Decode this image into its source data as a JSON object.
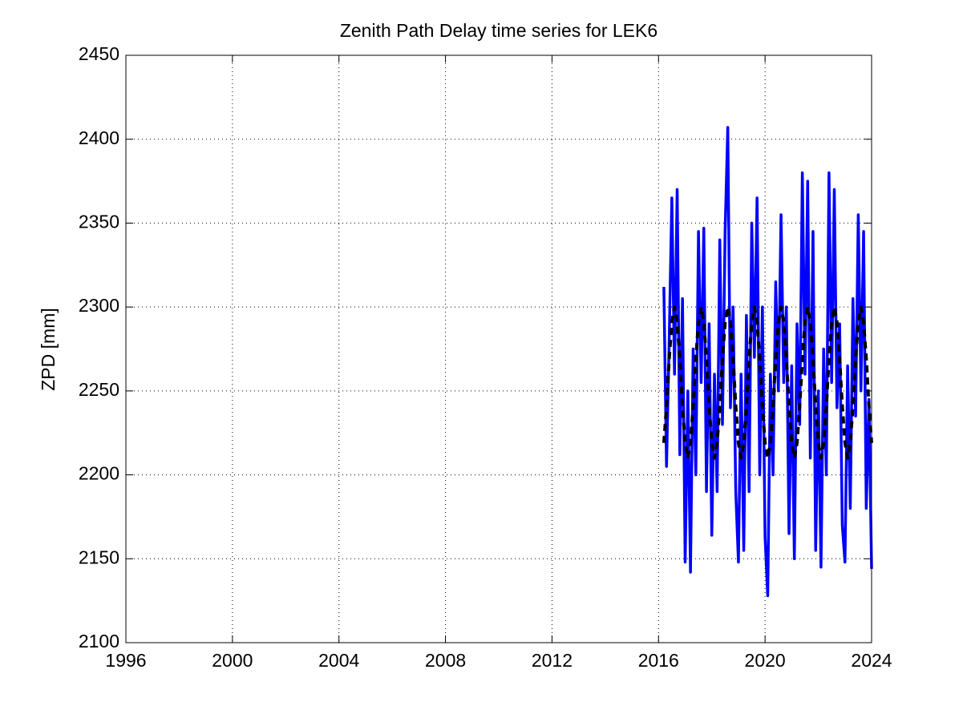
{
  "chart_data": {
    "type": "line",
    "title": "Zenith Path Delay time series for LEK6",
    "y_label": "ZPD [mm]",
    "x": [
      2016.2,
      2016.3,
      2016.4,
      2016.5,
      2016.6,
      2016.7,
      2016.8,
      2016.9,
      2017.0,
      2017.1,
      2017.2,
      2017.3,
      2017.4,
      2017.5,
      2017.6,
      2017.7,
      2017.8,
      2017.9,
      2018.0,
      2018.1,
      2018.2,
      2018.3,
      2018.4,
      2018.5,
      2018.6,
      2018.7,
      2018.8,
      2018.9,
      2019.0,
      2019.1,
      2019.2,
      2019.3,
      2019.4,
      2019.5,
      2019.6,
      2019.7,
      2019.8,
      2019.9,
      2020.0,
      2020.1,
      2020.2,
      2020.3,
      2020.4,
      2020.5,
      2020.6,
      2020.7,
      2020.8,
      2020.9,
      2021.0,
      2021.1,
      2021.2,
      2021.3,
      2021.4,
      2021.5,
      2021.6,
      2021.7,
      2021.8,
      2021.9,
      2022.0,
      2022.1,
      2022.2,
      2022.3,
      2022.4,
      2022.5,
      2022.6,
      2022.7,
      2022.8,
      2022.9,
      2023.0,
      2023.1,
      2023.2,
      2023.3,
      2023.4,
      2023.5,
      2023.6,
      2023.7,
      2023.8,
      2023.9,
      2024.0
    ],
    "series": [
      {
        "color": "#0000ff",
        "line_style": "solid",
        "values": [
          2312,
          2205,
          2280,
          2365,
          2260,
          2370,
          2212,
          2305,
          2148,
          2250,
          2142,
          2275,
          2200,
          2345,
          2255,
          2347,
          2190,
          2290,
          2164,
          2260,
          2190,
          2340,
          2230,
          2345,
          2407,
          2240,
          2300,
          2190,
          2148,
          2260,
          2155,
          2295,
          2190,
          2350,
          2270,
          2365,
          2200,
          2300,
          2163,
          2128,
          2260,
          2200,
          2315,
          2250,
          2355,
          2255,
          2300,
          2165,
          2265,
          2150,
          2290,
          2230,
          2380,
          2260,
          2375,
          2210,
          2345,
          2155,
          2250,
          2145,
          2275,
          2200,
          2380,
          2255,
          2370,
          2240,
          2290,
          2170,
          2148,
          2265,
          2180,
          2305,
          2235,
          2355,
          2250,
          2345,
          2180,
          2245,
          2144
        ]
      },
      {
        "color": "#000000",
        "line_style": "dashed",
        "values": [
          2219,
          2241,
          2269,
          2291,
          2300,
          2291,
          2269,
          2241,
          2219,
          2210,
          2219,
          2241,
          2269,
          2291,
          2300,
          2291,
          2269,
          2241,
          2219,
          2210,
          2219,
          2241,
          2269,
          2291,
          2300,
          2291,
          2269,
          2241,
          2219,
          2210,
          2219,
          2241,
          2269,
          2291,
          2300,
          2291,
          2269,
          2241,
          2219,
          2210,
          2219,
          2241,
          2269,
          2291,
          2300,
          2291,
          2269,
          2241,
          2219,
          2210,
          2219,
          2241,
          2269,
          2291,
          2300,
          2291,
          2269,
          2241,
          2219,
          2210,
          2219,
          2241,
          2269,
          2291,
          2300,
          2291,
          2269,
          2241,
          2219,
          2210,
          2219,
          2241,
          2269,
          2291,
          2300,
          2291,
          2269,
          2241,
          2219
        ]
      }
    ],
    "xlim": [
      1996,
      2024
    ],
    "xticks": [
      1996,
      2000,
      2004,
      2008,
      2012,
      2016,
      2020,
      2024
    ],
    "ylim": [
      2100,
      2450
    ],
    "yticks": [
      2100,
      2150,
      2200,
      2250,
      2300,
      2350,
      2400,
      2450
    ],
    "grid": true
  }
}
